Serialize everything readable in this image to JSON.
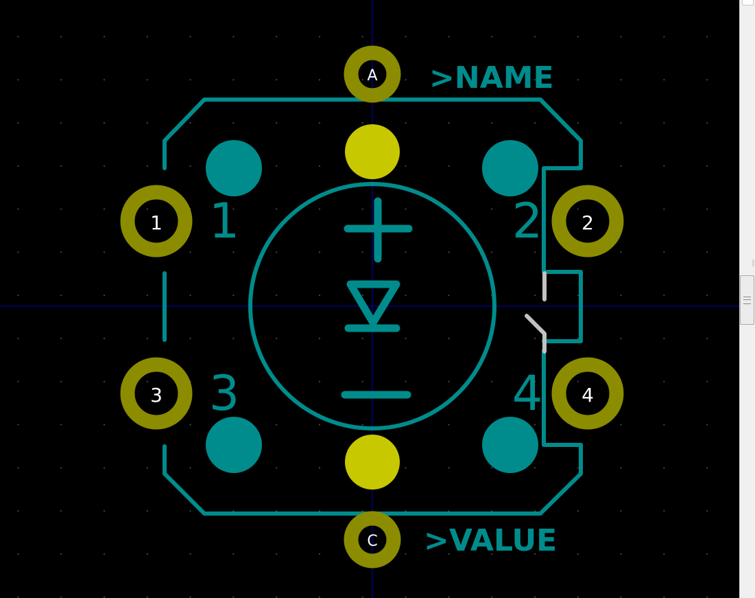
{
  "footprint": {
    "reference": ">NAME",
    "value": ">VALUE"
  },
  "pads": [
    {
      "label": "A"
    },
    {
      "label": "C"
    },
    {
      "label": "1"
    },
    {
      "label": "2"
    },
    {
      "label": "3"
    },
    {
      "label": "4"
    }
  ],
  "silkscreen_numbers": [
    "1",
    "2",
    "3",
    "4"
  ],
  "colors": {
    "background": "#000000",
    "silkscreen": "#008c8c",
    "pad_ring": "#8c8c00",
    "pad_fill": "#c8c800",
    "courtyard": "#c2c2c2",
    "crosshair": "#0000c8",
    "pad_label": "#ffffff"
  }
}
